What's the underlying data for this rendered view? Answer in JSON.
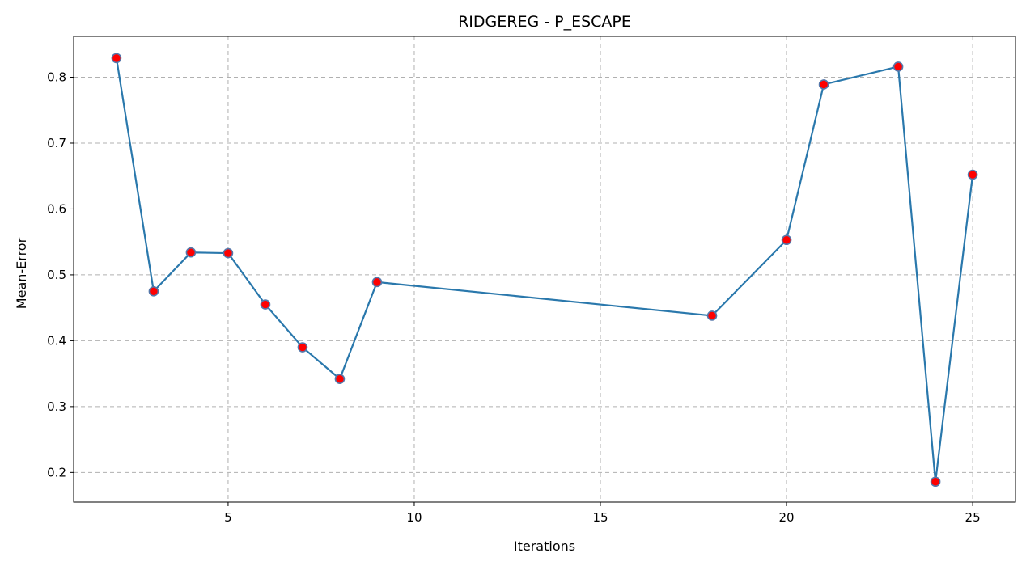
{
  "chart_data": {
    "type": "line",
    "title": "RIDGEREG - P_ESCAPE",
    "xlabel": "Iterations",
    "ylabel": "Mean-Error",
    "xlim": [
      0.85,
      26.15
    ],
    "ylim": [
      0.155,
      0.862
    ],
    "xticks": [
      5,
      10,
      15,
      20,
      25
    ],
    "yticks": [
      0.2,
      0.3,
      0.4,
      0.5,
      0.6,
      0.7,
      0.8
    ],
    "xtick_labels": [
      "5",
      "10",
      "15",
      "20",
      "25"
    ],
    "ytick_labels": [
      "0.2",
      "0.3",
      "0.4",
      "0.5",
      "0.6",
      "0.7",
      "0.8"
    ],
    "grid": true,
    "series": [
      {
        "x": [
          2,
          3,
          4,
          5,
          6,
          7,
          8,
          9,
          18,
          20,
          21,
          23,
          24,
          25
        ],
        "y": [
          0.829,
          0.475,
          0.534,
          0.533,
          0.455,
          0.39,
          0.342,
          0.489,
          0.438,
          0.553,
          0.789,
          0.816,
          0.186,
          0.652
        ],
        "line_color": "#2a78ac",
        "marker_color": "#ff0000",
        "marker_edge_color": "#5577aa"
      }
    ]
  }
}
